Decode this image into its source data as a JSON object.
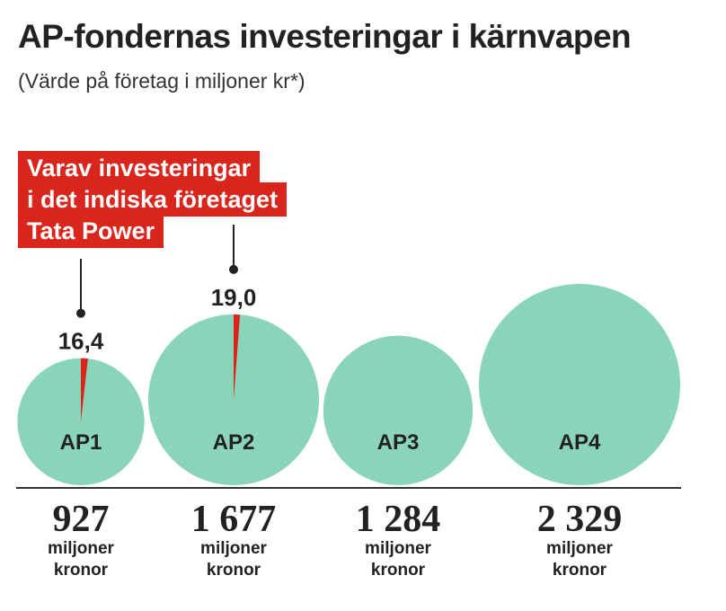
{
  "title": "AP-fondernas investeringar i kärnvapen",
  "subtitle": "(Värde på företag i miljoner kr*)",
  "callout": {
    "lines": [
      "Varav investeringar",
      "i det indiska företaget",
      "Tata Power"
    ]
  },
  "colors": {
    "bubble": "#8ad5b9",
    "highlight": "#d9261c",
    "text": "#222222",
    "axis": "#333333"
  },
  "chart_data": {
    "type": "bubble",
    "series": [
      {
        "name": "AP1",
        "value": 927,
        "value_label": "927",
        "tata_power": 16.4,
        "tata_label": "16,4"
      },
      {
        "name": "AP2",
        "value": 1677,
        "value_label": "1 677",
        "tata_power": 19.0,
        "tata_label": "19,0"
      },
      {
        "name": "AP3",
        "value": 1284,
        "value_label": "1 284",
        "tata_power": null,
        "tata_label": ""
      },
      {
        "name": "AP4",
        "value": 2329,
        "value_label": "2 329",
        "tata_power": null,
        "tata_label": ""
      }
    ],
    "unit_label": [
      "miljoner",
      "kronor"
    ]
  }
}
